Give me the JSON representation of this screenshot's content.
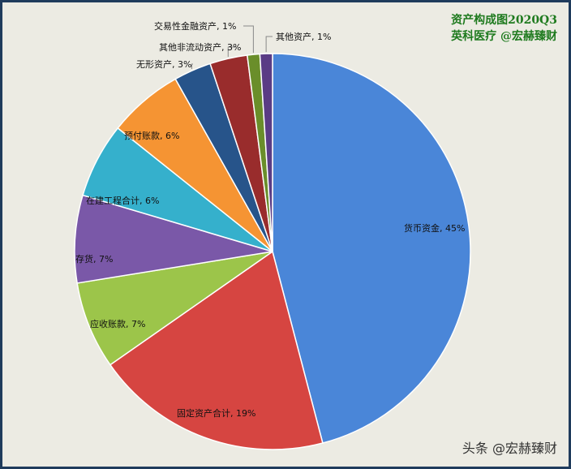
{
  "chart_data": {
    "type": "pie",
    "title": "资产构成图2020Q3",
    "subtitle": "英科医疗 @宏赫臻财",
    "start_angle": "top",
    "direction": "clockwise",
    "slices": [
      {
        "label": "货币资金",
        "value": 45,
        "display": "货币资金, 45%",
        "color": "#4a86d8"
      },
      {
        "label": "固定资产合计",
        "value": 19,
        "display": "固定资产合计, 19%",
        "color": "#d64541"
      },
      {
        "label": "应收账款",
        "value": 7,
        "display": "应收账款, 7%",
        "color": "#9cc54a"
      },
      {
        "label": "存货",
        "value": 7,
        "display": "存货, 7%",
        "color": "#7a58a8"
      },
      {
        "label": "在建工程合计",
        "value": 6,
        "display": "在建工程合计, 6%",
        "color": "#35b0cc"
      },
      {
        "label": "预付账款",
        "value": 6,
        "display": "预付账款, 6%",
        "color": "#f59433"
      },
      {
        "label": "无形资产",
        "value": 3,
        "display": "无形资产, 3%",
        "color": "#27548a"
      },
      {
        "label": "其他非流动资产",
        "value": 3,
        "display": "其他非流动资产, 3%",
        "color": "#992c2c"
      },
      {
        "label": "交易性金融资产",
        "value": 1,
        "display": "交易性金融资产, 1%",
        "color": "#6a8e2a"
      },
      {
        "label": "其他资产",
        "value": 1,
        "display": "其他资产, 1%",
        "color": "#5a3c85"
      }
    ]
  },
  "watermark": "头条 @宏赫臻财"
}
